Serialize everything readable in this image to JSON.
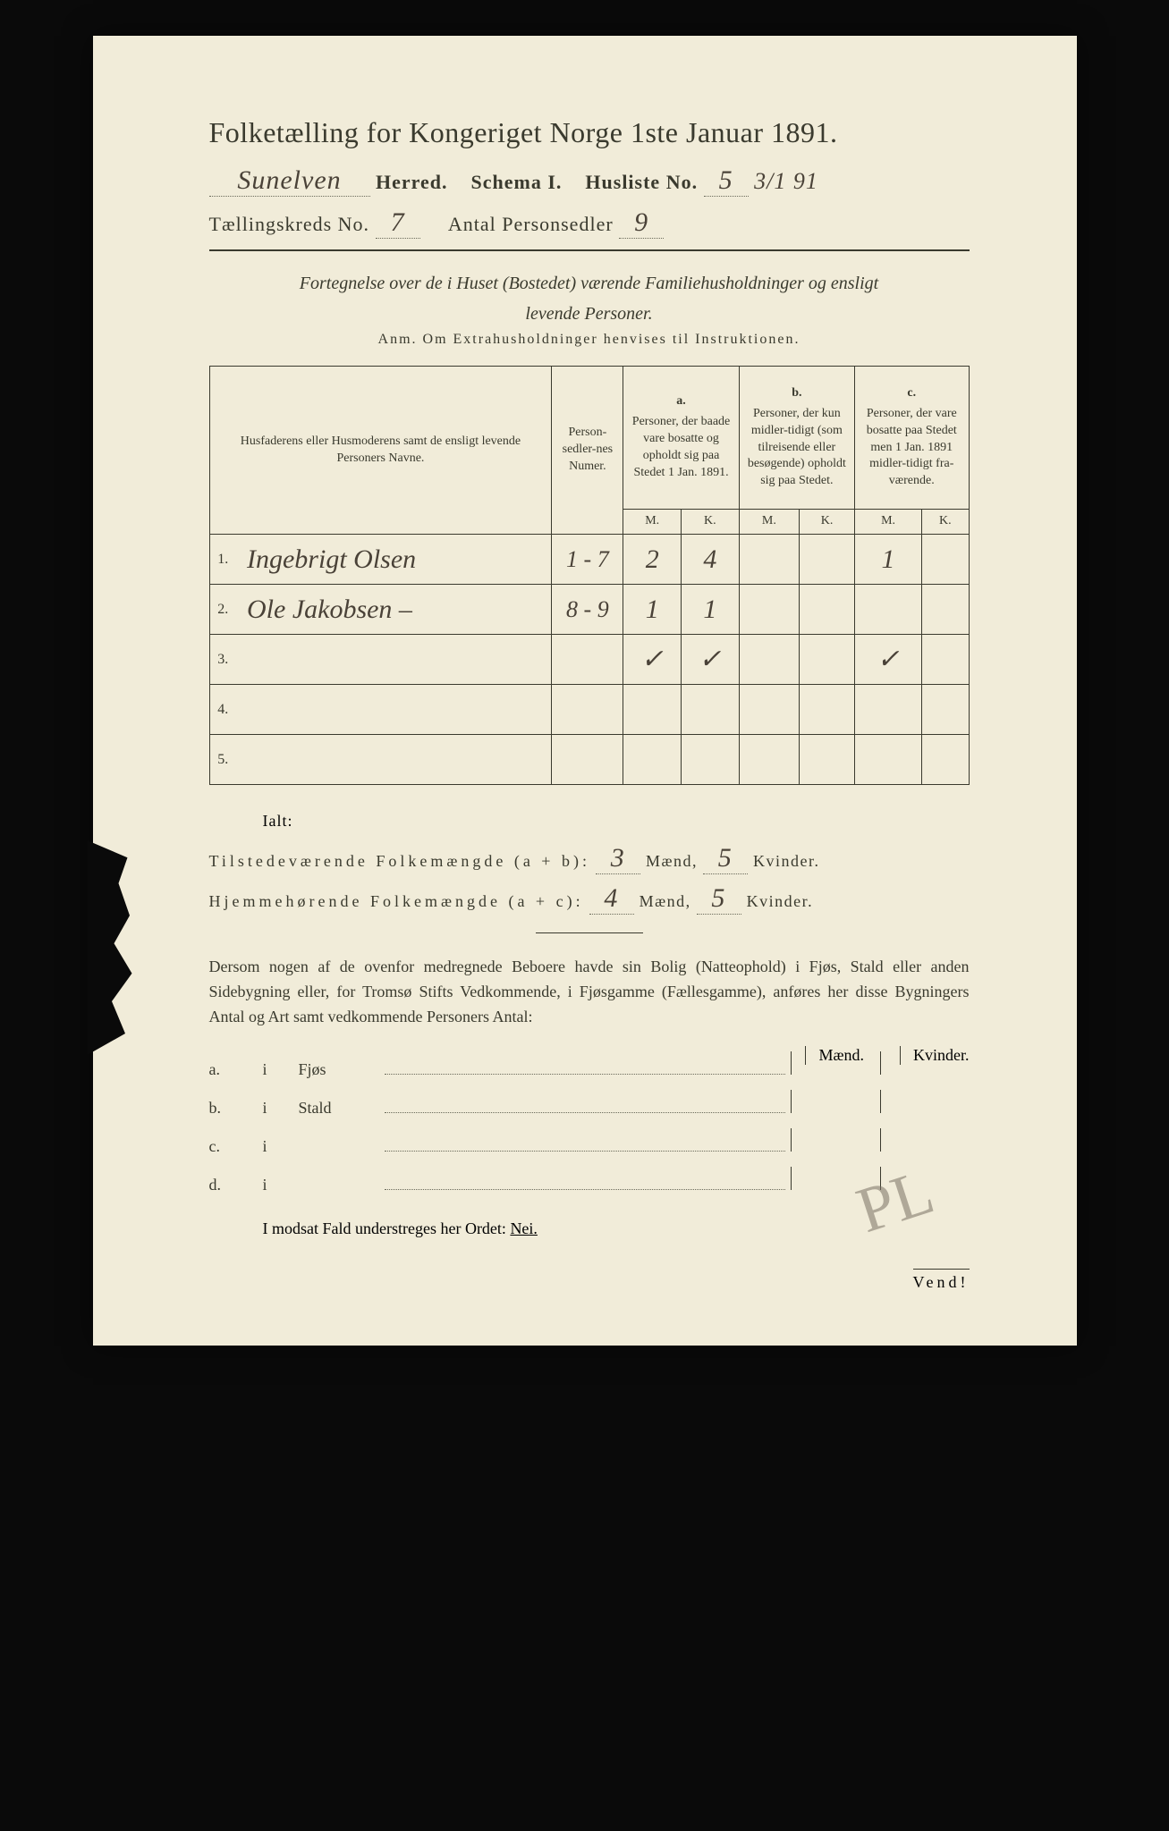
{
  "header": {
    "title": "Folketælling for Kongeriget Norge 1ste Januar 1891.",
    "herred_value": "Sunelven",
    "herred_label": "Herred.",
    "schema_label": "Schema I.",
    "husliste_label": "Husliste No.",
    "husliste_no": "5",
    "husliste_date": "3/1 91",
    "kreds_label": "Tællingskreds No.",
    "kreds_no": "7",
    "antal_label": "Antal Personsedler",
    "antal_val": "9"
  },
  "desc": {
    "line1": "Fortegnelse over de i Huset (Bostedet) værende Familiehusholdninger og ensligt",
    "line2": "levende Personer.",
    "anm": "Anm.  Om Extrahusholdninger henvises til Instruktionen."
  },
  "table": {
    "col_names": "Husfaderens eller Husmoderens samt de ensligt levende Personers Navne.",
    "col_numer": "Person-sedler-nes Numer.",
    "col_a_letter": "a.",
    "col_a": "Personer, der baade vare bosatte og opholdt sig paa Stedet 1 Jan. 1891.",
    "col_b_letter": "b.",
    "col_b": "Personer, der kun midler-tidigt (som tilreisende eller besøgende) opholdt sig paa Stedet.",
    "col_c_letter": "c.",
    "col_c": "Personer, der vare bosatte paa Stedet men 1 Jan. 1891 midler-tidigt fra-værende.",
    "M": "M.",
    "K": "K.",
    "rows": [
      {
        "n": "1.",
        "name": "Ingebrigt Olsen",
        "numer": "1 - 7",
        "aM": "2",
        "aK": "4",
        "bM": "",
        "bK": "",
        "cM": "1",
        "cK": ""
      },
      {
        "n": "2.",
        "name": "Ole Jakobsen –",
        "numer": "8 - 9",
        "aM": "1",
        "aK": "1",
        "bM": "",
        "bK": "",
        "cM": "",
        "cK": ""
      },
      {
        "n": "3.",
        "name": "",
        "numer": "",
        "aM": "✓",
        "aK": "✓",
        "bM": "",
        "bK": "",
        "cM": "✓",
        "cK": ""
      },
      {
        "n": "4.",
        "name": "",
        "numer": "",
        "aM": "",
        "aK": "",
        "bM": "",
        "bK": "",
        "cM": "",
        "cK": ""
      },
      {
        "n": "5.",
        "name": "",
        "numer": "",
        "aM": "",
        "aK": "",
        "bM": "",
        "bK": "",
        "cM": "",
        "cK": ""
      }
    ]
  },
  "totals": {
    "ialt": "Ialt:",
    "line1_label": "Tilstedeværende Folkemængde (a + b):",
    "line1_m": "3",
    "line1_mlabel": "Mænd,",
    "line1_k": "5",
    "line1_klabel": "Kvinder.",
    "line2_label": "Hjemmehørende Folkemængde (a + c):",
    "line2_m": "4",
    "line2_mlabel": "Mænd,",
    "line2_k": "5",
    "line2_klabel": "Kvinder."
  },
  "para": "Dersom nogen af de ovenfor medregnede Beboere havde sin Bolig (Natteophold) i Fjøs, Stald eller anden Sidebygning eller, for Tromsø Stifts Vedkommende, i Fjøsgamme (Fællesgamme), anføres her disse Bygningers Antal og Art samt vedkommende Personers Antal:",
  "bldg": {
    "head_m": "Mænd.",
    "head_k": "Kvinder.",
    "rows": [
      {
        "lbl": "a.",
        "i": "i",
        "type": "Fjøs"
      },
      {
        "lbl": "b.",
        "i": "i",
        "type": "Stald"
      },
      {
        "lbl": "c.",
        "i": "i",
        "type": ""
      },
      {
        "lbl": "d.",
        "i": "i",
        "type": ""
      }
    ]
  },
  "nei": {
    "text": "I modsat Fald understreges her Ordet:",
    "word": "Nei."
  },
  "vend": "Vend!",
  "signature": "PL",
  "colors": {
    "paper": "#f1ecd9",
    "ink": "#3a3a2e",
    "hand": "#4a4238",
    "bg": "#0a0a0a"
  },
  "typography": {
    "title_pt": 32,
    "body_pt": 18,
    "table_header_pt": 14,
    "handwriting_family": "Brush Script MT"
  }
}
